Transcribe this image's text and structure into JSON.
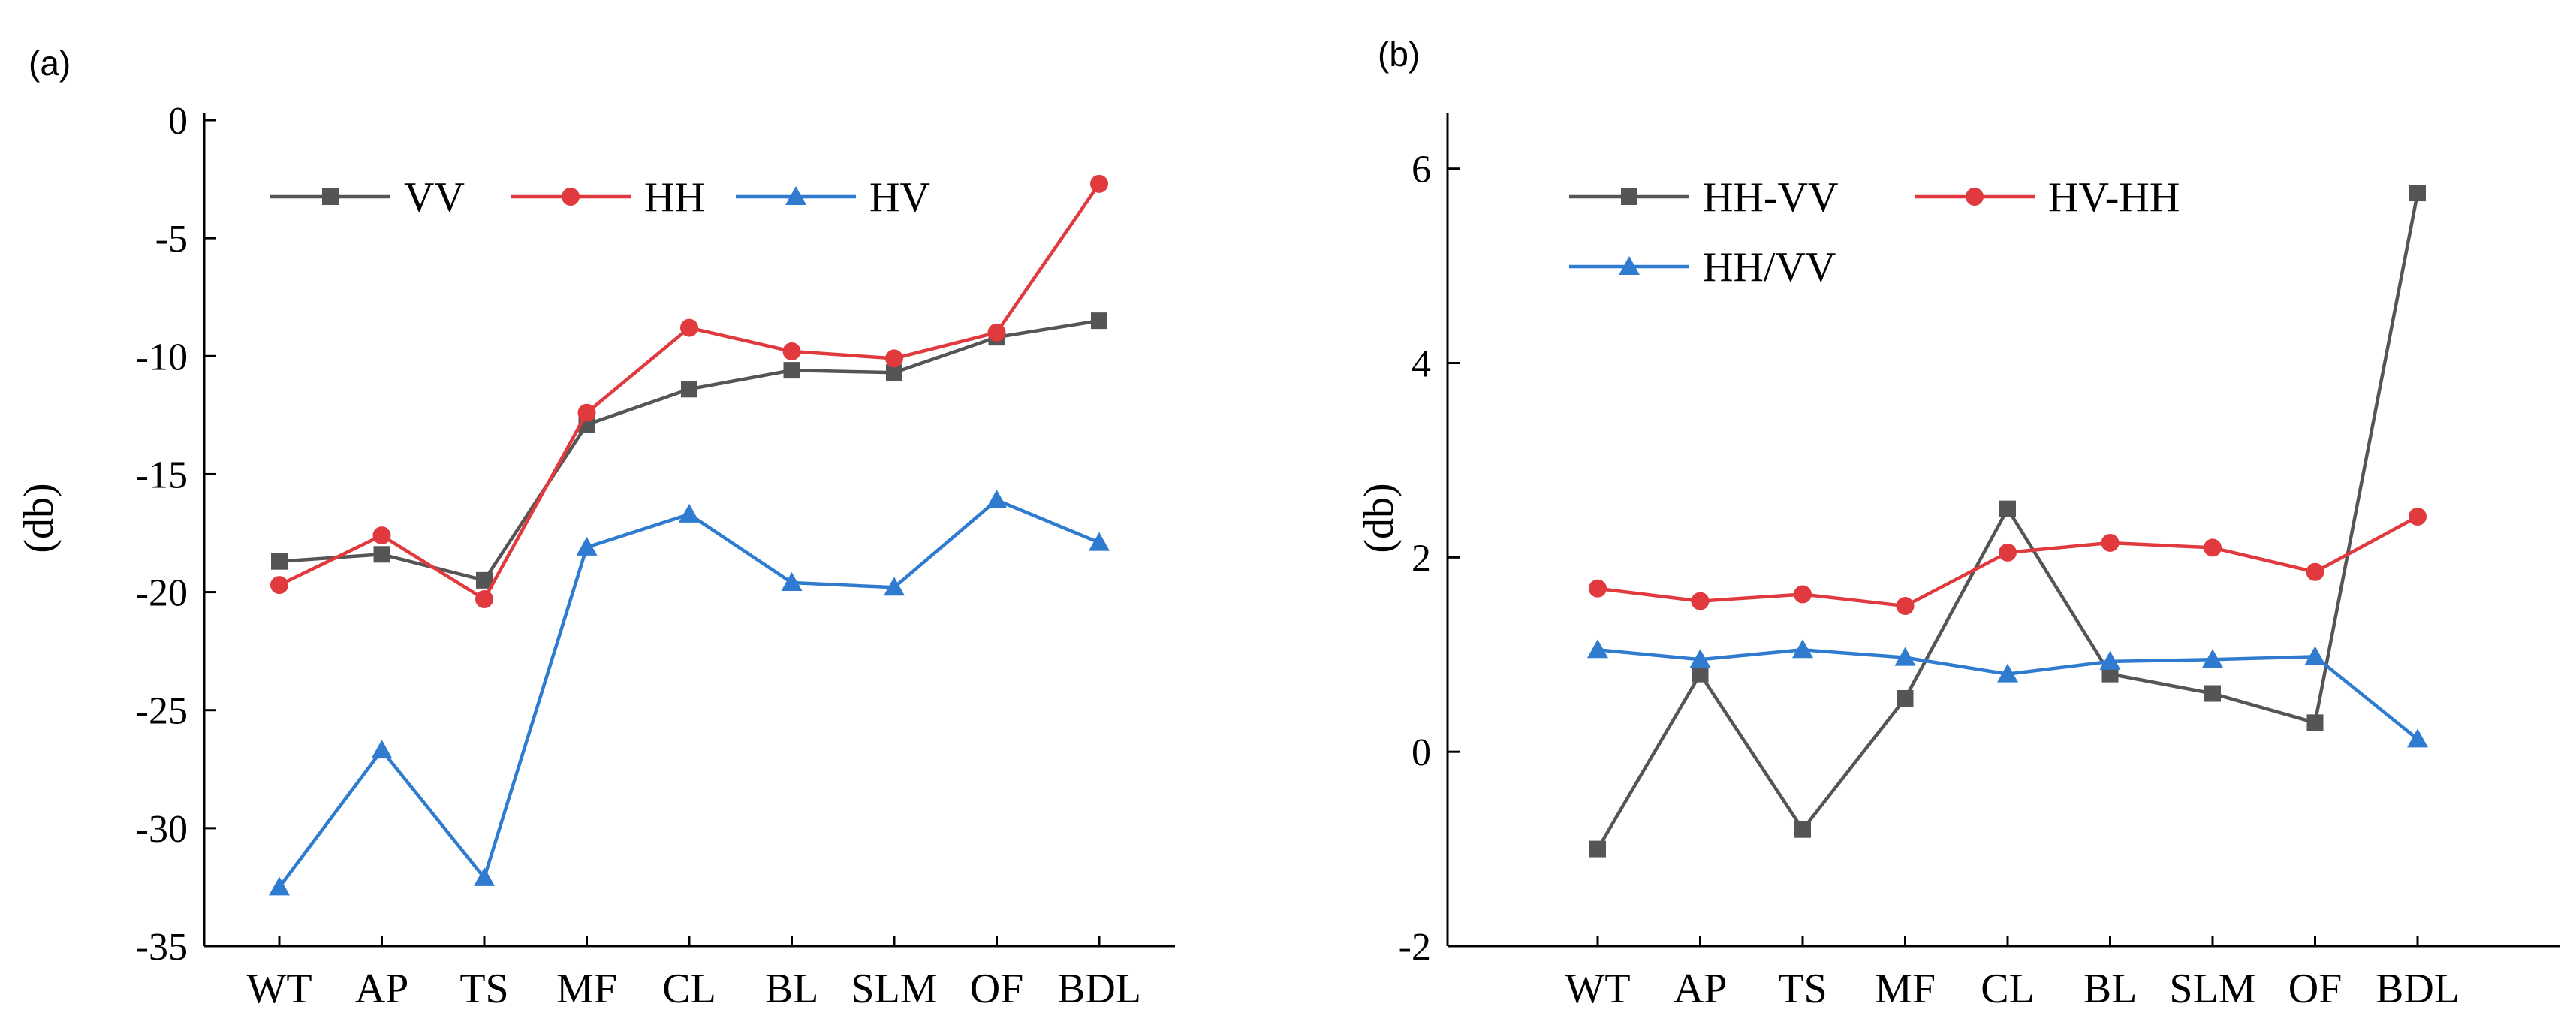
{
  "chart_data": [
    {
      "panel": "(a)",
      "type": "line",
      "categories": [
        "WT",
        "AP",
        "TS",
        "MF",
        "CL",
        "BL",
        "SLM",
        "OF",
        "BDL"
      ],
      "ylabel": "(db)",
      "ylim": [
        -35,
        0
      ],
      "yticks": [
        0,
        -5,
        -10,
        -15,
        -20,
        -25,
        -30,
        -35
      ],
      "legend_position": "top-left",
      "series": [
        {
          "name": "VV",
          "color": "#555555",
          "marker": "square",
          "values": [
            -18.7,
            -18.4,
            -19.5,
            -12.9,
            -11.4,
            -10.6,
            -10.7,
            -9.2,
            -8.5
          ]
        },
        {
          "name": "HH",
          "color": "#e0393e",
          "marker": "circle",
          "values": [
            -19.7,
            -17.6,
            -20.3,
            -12.4,
            -8.8,
            -9.8,
            -10.1,
            -9.0,
            -2.7
          ]
        },
        {
          "name": "HV",
          "color": "#2f7bd0",
          "marker": "triangle",
          "values": [
            -32.5,
            -26.7,
            -32.1,
            -18.1,
            -16.7,
            -19.6,
            -19.8,
            -16.1,
            -17.9
          ]
        }
      ]
    },
    {
      "panel": "(b)",
      "type": "line",
      "categories": [
        "WT",
        "AP",
        "TS",
        "MF",
        "CL",
        "BL",
        "SLM",
        "OF",
        "BDL"
      ],
      "ylabel": "(db)",
      "ylim": [
        -2,
        6.5
      ],
      "yticks": [
        6,
        4,
        2,
        0,
        -2
      ],
      "legend_position": "top-left",
      "series": [
        {
          "name": "HH-VV",
          "color": "#555555",
          "marker": "square",
          "values": [
            -1.0,
            0.8,
            -0.8,
            0.55,
            2.5,
            0.8,
            0.6,
            0.3,
            5.75
          ]
        },
        {
          "name": "HV-HH",
          "color": "#e0393e",
          "marker": "circle",
          "values": [
            1.68,
            1.55,
            1.62,
            1.5,
            2.05,
            2.15,
            2.1,
            1.85,
            2.42
          ]
        },
        {
          "name": "HH/VV",
          "color": "#2f7bd0",
          "marker": "triangle",
          "values": [
            1.05,
            0.95,
            1.05,
            0.97,
            0.8,
            0.93,
            0.95,
            0.98,
            0.13
          ]
        }
      ]
    }
  ]
}
